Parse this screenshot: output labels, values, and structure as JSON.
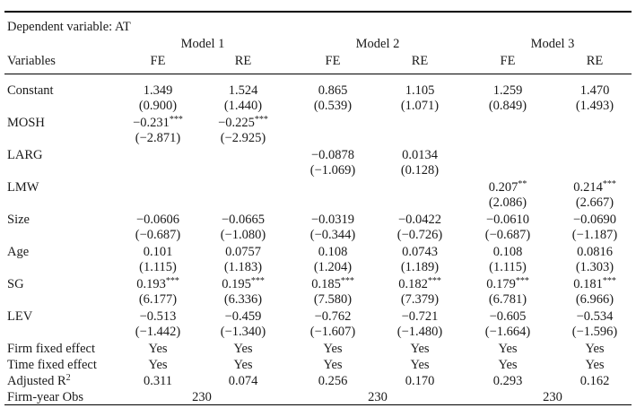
{
  "title": "Dependent variable: AT",
  "models": [
    "Model 1",
    "Model 2",
    "Model 3"
  ],
  "header": {
    "variables": "Variables",
    "cols": [
      "FE",
      "RE",
      "FE",
      "RE",
      "FE",
      "RE"
    ]
  },
  "rows": [
    {
      "label": "Constant",
      "coef": [
        "1.349",
        "1.524",
        "0.865",
        "1.105",
        "1.259",
        "1.470"
      ],
      "se": [
        "(0.900)",
        "(1.440)",
        "(0.539)",
        "(1.071)",
        "(0.849)",
        "(1.493)"
      ]
    },
    {
      "label": "MOSH",
      "coef": [
        "−0.231***",
        "−0.225***",
        "",
        "",
        "",
        ""
      ],
      "se": [
        "(−2.871)",
        "(−2.925)",
        "",
        "",
        "",
        ""
      ]
    },
    {
      "label": "LARG",
      "coef": [
        "",
        "",
        "−0.0878",
        "0.0134",
        "",
        ""
      ],
      "se": [
        "",
        "",
        "(−1.069)",
        "(0.128)",
        "",
        ""
      ]
    },
    {
      "label": "LMW",
      "coef": [
        "",
        "",
        "",
        "",
        "0.207**",
        "0.214***"
      ],
      "se": [
        "",
        "",
        "",
        "",
        "(2.086)",
        "(2.667)"
      ]
    },
    {
      "label": "Size",
      "coef": [
        "−0.0606",
        "−0.0665",
        "−0.0319",
        "−0.0422",
        "−0.0610",
        "−0.0690"
      ],
      "se": [
        "(−0.687)",
        "(−1.080)",
        "(−0.344)",
        "(−0.726)",
        "(−0.687)",
        "(−1.187)"
      ]
    },
    {
      "label": "Age",
      "coef": [
        "0.101",
        "0.0757",
        "0.108",
        "0.0743",
        "0.108",
        "0.0816"
      ],
      "se": [
        "(1.115)",
        "(1.183)",
        "(1.204)",
        "(1.189)",
        "(1.115)",
        "(1.303)"
      ]
    },
    {
      "label": "SG",
      "coef": [
        "0.193***",
        "0.195***",
        "0.185***",
        "0.182***",
        "0.179***",
        "0.181***"
      ],
      "se": [
        "(6.177)",
        "(6.336)",
        "(7.580)",
        "(7.379)",
        "(6.781)",
        "(6.966)"
      ]
    },
    {
      "label": "LEV",
      "coef": [
        "−0.513",
        "−0.459",
        "−0.762",
        "−0.721",
        "−0.605",
        "−0.534"
      ],
      "se": [
        "(−1.442)",
        "(−1.340)",
        "(−1.607)",
        "(−1.480)",
        "(−1.664)",
        "(−1.596)"
      ]
    }
  ],
  "firm_fe": {
    "label": "Firm fixed effect",
    "values": [
      "Yes",
      "Yes",
      "Yes",
      "Yes",
      "Yes",
      "Yes"
    ]
  },
  "time_fe": {
    "label": "Time fixed effect",
    "values": [
      "Yes",
      "Yes",
      "Yes",
      "Yes",
      "Yes",
      "Yes"
    ]
  },
  "adj_r2": {
    "label": "Adjusted R",
    "label_sup": "2",
    "values": [
      "0.311",
      "0.074",
      "0.256",
      "0.170",
      "0.293",
      "0.162"
    ]
  },
  "obs": {
    "label": "Firm-year Obs",
    "values": [
      "230",
      "230",
      "230"
    ]
  }
}
